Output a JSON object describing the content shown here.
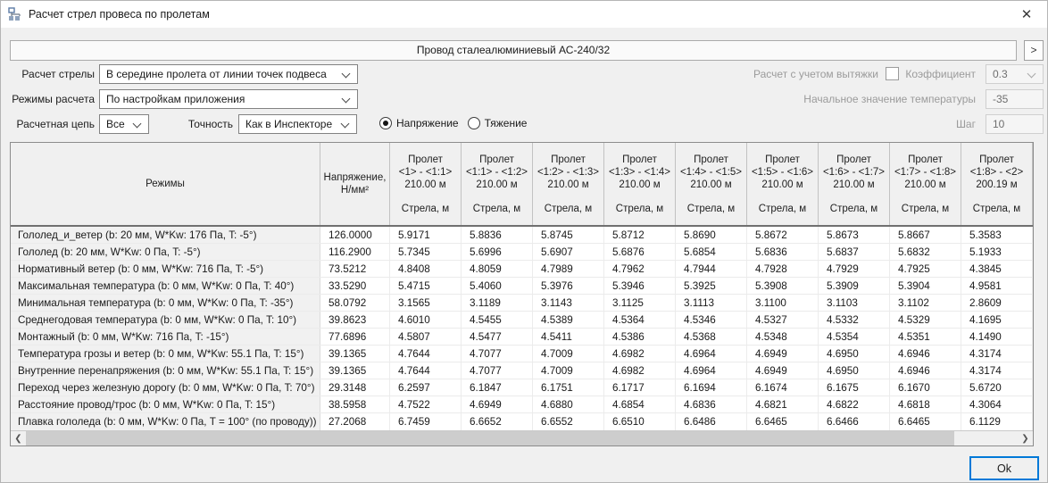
{
  "window": {
    "title": "Расчет стрел провеса по пролетам",
    "close_glyph": "✕"
  },
  "toolbar": {
    "conductor": "Провод сталеалюминиевый АС-240/32",
    "next_label": ">"
  },
  "form": {
    "sag_calc_label": "Расчет стрелы",
    "sag_calc_value": "В середине пролета от линии точек подвеса",
    "modes_label": "Режимы расчета",
    "modes_value": "По настройкам приложения",
    "chain_label": "Расчетная цепь",
    "chain_value": "Все",
    "precision_label": "Точность",
    "precision_value": "Как в Инспекторе",
    "radio_stress": "Напряжение",
    "radio_tension": "Тяжение",
    "stretch_label": "Расчет с учетом вытяжки",
    "coefficient_label": "Коэффициент",
    "coefficient_value": "0.3",
    "initial_temp_label": "Начальное значение температуры",
    "initial_temp_value": "-35",
    "step_label": "Шаг",
    "step_value": "10"
  },
  "table": {
    "modes_header": "Режимы",
    "stress_header": "Напряжение,\nН/мм²",
    "span_word": "Пролет",
    "sag_word": "Стрела, м",
    "spans": [
      {
        "range": "<1> - <1:1>",
        "length": "210.00 м"
      },
      {
        "range": "<1:1> - <1:2>",
        "length": "210.00 м"
      },
      {
        "range": "<1:2> - <1:3>",
        "length": "210.00 м"
      },
      {
        "range": "<1:3> - <1:4>",
        "length": "210.00 м"
      },
      {
        "range": "<1:4> - <1:5>",
        "length": "210.00 м"
      },
      {
        "range": "<1:5> - <1:6>",
        "length": "210.00 м"
      },
      {
        "range": "<1:6> - <1:7>",
        "length": "210.00 м"
      },
      {
        "range": "<1:7> - <1:8>",
        "length": "210.00 м"
      },
      {
        "range": "<1:8> - <2>",
        "length": "200.19 м"
      }
    ],
    "rows": [
      {
        "mode": "Гололед_и_ветер (b: 20 мм, W*Kw: 176 Па, T: -5°)",
        "stress": "126.0000",
        "sags": [
          "5.9171",
          "5.8836",
          "5.8745",
          "5.8712",
          "5.8690",
          "5.8672",
          "5.8673",
          "5.8667",
          "5.3583"
        ]
      },
      {
        "mode": "Гололед (b: 20 мм, W*Kw: 0 Па, T: -5°)",
        "stress": "116.2900",
        "sags": [
          "5.7345",
          "5.6996",
          "5.6907",
          "5.6876",
          "5.6854",
          "5.6836",
          "5.6837",
          "5.6832",
          "5.1933"
        ]
      },
      {
        "mode": "Нормативный ветер (b: 0 мм, W*Kw: 716 Па, T: -5°)",
        "stress": "73.5212",
        "sags": [
          "4.8408",
          "4.8059",
          "4.7989",
          "4.7962",
          "4.7944",
          "4.7928",
          "4.7929",
          "4.7925",
          "4.3845"
        ]
      },
      {
        "mode": "Максимальная температура (b: 0 мм, W*Kw: 0 Па, T: 40°)",
        "stress": "33.5290",
        "sags": [
          "5.4715",
          "5.4060",
          "5.3976",
          "5.3946",
          "5.3925",
          "5.3908",
          "5.3909",
          "5.3904",
          "4.9581"
        ]
      },
      {
        "mode": "Минимальная температура (b: 0 мм, W*Kw: 0 Па, T: -35°)",
        "stress": "58.0792",
        "sags": [
          "3.1565",
          "3.1189",
          "3.1143",
          "3.1125",
          "3.1113",
          "3.1100",
          "3.1103",
          "3.1102",
          "2.8609"
        ]
      },
      {
        "mode": "Среднегодовая температура (b: 0 мм, W*Kw: 0 Па, T: 10°)",
        "stress": "39.8623",
        "sags": [
          "4.6010",
          "4.5455",
          "4.5389",
          "4.5364",
          "4.5346",
          "4.5327",
          "4.5332",
          "4.5329",
          "4.1695"
        ]
      },
      {
        "mode": "Монтажный (b: 0 мм, W*Kw: 716 Па, T: -15°)",
        "stress": "77.6896",
        "sags": [
          "4.5807",
          "4.5477",
          "4.5411",
          "4.5386",
          "4.5368",
          "4.5348",
          "4.5354",
          "4.5351",
          "4.1490"
        ]
      },
      {
        "mode": "Температура грозы и ветер (b: 0 мм, W*Kw: 55.1 Па, T: 15°)",
        "stress": "39.1365",
        "sags": [
          "4.7644",
          "4.7077",
          "4.7009",
          "4.6982",
          "4.6964",
          "4.6949",
          "4.6950",
          "4.6946",
          "4.3174"
        ]
      },
      {
        "mode": "Внутренние перенапряжения (b: 0 мм, W*Kw: 55.1 Па, T: 15°)",
        "stress": "39.1365",
        "sags": [
          "4.7644",
          "4.7077",
          "4.7009",
          "4.6982",
          "4.6964",
          "4.6949",
          "4.6950",
          "4.6946",
          "4.3174"
        ]
      },
      {
        "mode": "Переход через железную дорогу (b: 0 мм, W*Kw: 0 Па, T: 70°)",
        "stress": "29.3148",
        "sags": [
          "6.2597",
          "6.1847",
          "6.1751",
          "6.1717",
          "6.1694",
          "6.1674",
          "6.1675",
          "6.1670",
          "5.6720"
        ]
      },
      {
        "mode": "Расстояние провод/трос (b: 0 мм, W*Kw: 0 Па, T: 15°)",
        "stress": "38.5958",
        "sags": [
          "4.7522",
          "4.6949",
          "4.6880",
          "4.6854",
          "4.6836",
          "4.6821",
          "4.6822",
          "4.6818",
          "4.3064"
        ]
      },
      {
        "mode": "Плавка гололеда (b: 0 мм, W*Kw: 0 Па, T = 100° (по проводу))",
        "stress": "27.2068",
        "sags": [
          "6.7459",
          "6.6652",
          "6.6552",
          "6.6510",
          "6.6486",
          "6.6465",
          "6.6466",
          "6.6465",
          "6.1129"
        ]
      }
    ]
  },
  "scrollbar": {
    "left_glyph": "❮",
    "right_glyph": "❯"
  },
  "footer": {
    "ok_label": "Ok"
  }
}
